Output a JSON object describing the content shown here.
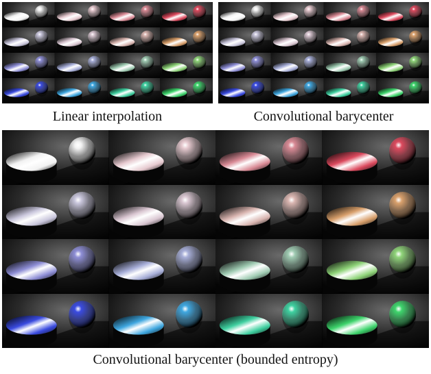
{
  "captions": {
    "linear": "Linear interpolation",
    "convolutional": "Convolutional barycenter",
    "bounded": "Convolutional barycenter (bounded entropy)"
  },
  "grid": {
    "rows": 4,
    "cols": 4
  },
  "material_colors": {
    "linear": [
      [
        "#f2f2f2",
        "#e6c9cf",
        "#d98a95",
        "#dc4a5e"
      ],
      [
        "#c9c6dc",
        "#d9c6d1",
        "#d9b5b0",
        "#d9a06c"
      ],
      [
        "#8e8ed6",
        "#a7aed8",
        "#9fcbb2",
        "#8fd479"
      ],
      [
        "#3a4be0",
        "#3fa7e0",
        "#3fd0a0",
        "#3ed46c"
      ]
    ],
    "convolutional": [
      [
        "#f2f2f2",
        "#e6c9cf",
        "#d98a95",
        "#dc4a5e"
      ],
      [
        "#c9c6dc",
        "#d9c6d1",
        "#d9b5b0",
        "#d9a06c"
      ],
      [
        "#8e8ed6",
        "#a7aed8",
        "#9fcbb2",
        "#8fd479"
      ],
      [
        "#3a4be0",
        "#3fa7e0",
        "#3fd0a0",
        "#3ed46c"
      ]
    ],
    "bounded": [
      [
        "#f2f2f2",
        "#e6c9cf",
        "#d98a95",
        "#dc4a5e"
      ],
      [
        "#c9c6dc",
        "#d9c6d1",
        "#d9b5b0",
        "#d9a06c"
      ],
      [
        "#8e8ed6",
        "#a7aed8",
        "#9fcbb2",
        "#8fd479"
      ],
      [
        "#3a4be0",
        "#3fa7e0",
        "#3fd0a0",
        "#3ed46c"
      ]
    ]
  }
}
